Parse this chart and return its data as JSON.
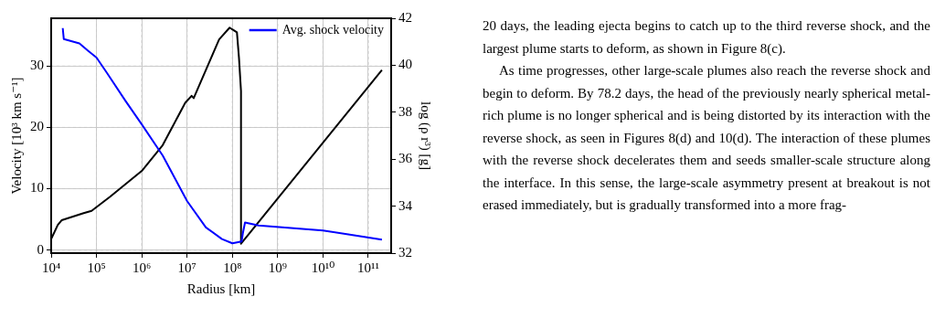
{
  "chart_data": {
    "type": "line",
    "xlabel": "Radius [km]",
    "ylabel": "Velocity [10³ km s⁻¹]",
    "y2label": "log (ρ r³) [g]",
    "log": "x",
    "grid": true,
    "legend": "top right",
    "marker": "none",
    "line_style": "solid",
    "xlim": [
      10000,
      320000000000
    ],
    "xticks": [
      {
        "value": 10000,
        "label": "10⁴"
      },
      {
        "value": 100000,
        "label": "10⁵"
      },
      {
        "value": 1000000,
        "label": "10⁶"
      },
      {
        "value": 10000000,
        "label": "10⁷"
      },
      {
        "value": 100000000,
        "label": "10⁸"
      },
      {
        "value": 1000000000,
        "label": "10⁹"
      },
      {
        "value": 10000000000,
        "label": "10¹⁰"
      },
      {
        "value": 100000000000,
        "label": "10¹¹"
      }
    ],
    "ylim": [
      -0.5,
      37.8
    ],
    "yticks": [
      0,
      10,
      20,
      30
    ],
    "y2lim": [
      32,
      42
    ],
    "y2ticks": [
      32,
      34,
      36,
      38,
      40,
      42
    ],
    "series": [
      {
        "name": "Avg. shock velocity",
        "color": "#0000ff",
        "x": [
          18000,
          19000,
          42000,
          65000,
          100000,
          170000,
          440000,
          1000000,
          2900000,
          10000000,
          26000000,
          59000000,
          100000000,
          160000000,
          170000000,
          190000000,
          380000000,
          10000000000,
          200000000000
        ],
        "values": [
          36.2,
          34.4,
          33.7,
          32.5,
          31.4,
          28.9,
          24.3,
          20.5,
          15.4,
          8,
          3.7,
          1.8,
          1.1,
          1.4,
          2.7,
          4.5,
          4,
          3.2,
          1.7
        ]
      },
      {
        "color": "#000000",
        "axis": "y2",
        "x": [
          10000,
          14000,
          17000,
          52000,
          78000,
          200000,
          1000000,
          2900000,
          9100000,
          12600000,
          14000000,
          26000000,
          51000000,
          87000000,
          126000000,
          140000000,
          155000000,
          155000000,
          200000000000
        ],
        "values": [
          32.6,
          33.2,
          33.4,
          33.7,
          33.8,
          34.4,
          35.5,
          36.6,
          38.4,
          38.7,
          38.6,
          39.8,
          41.1,
          41.6,
          41.4,
          40.3,
          38.9,
          32.4,
          39.8
        ]
      }
    ],
    "annotations": [
      "20 days, the leading ejecta begins to catch up to the third reverse shock, and the largest plume starts to deform, as shown in Figure 8(c).",
      "As time progresses, other large-scale plumes also reach the reverse shock and begin to deform. By 78.2 days, the head of the previously nearly spherical metal-rich plume is no longer spherical and is being distorted by its interaction with the reverse shock, as seen in Figures 8(d) and 10(d). The interaction of these plumes with the reverse shock decelerates them and seeds smaller-scale structure along the interface. In this sense, the large-scale asymmetry present at breakout is not erased immediately, but is gradually transformed into a more frag-"
    ]
  }
}
